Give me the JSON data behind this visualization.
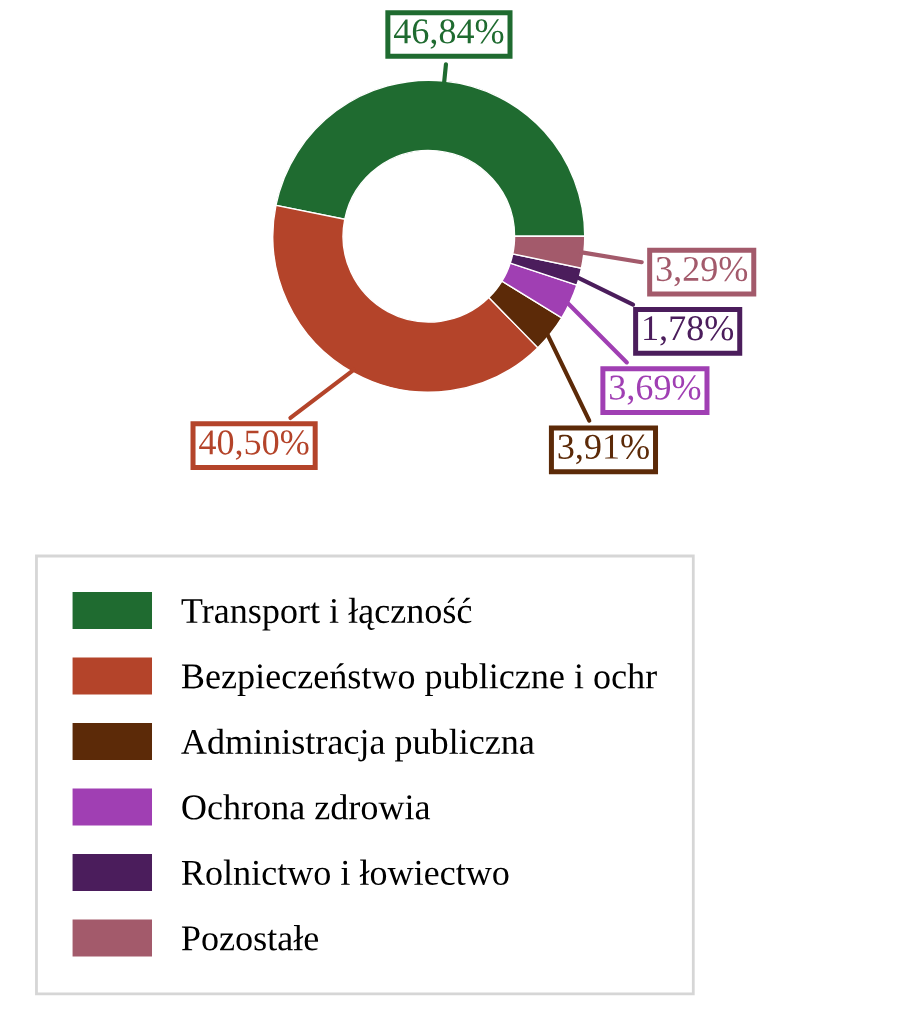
{
  "chart_data": {
    "type": "donut",
    "categories": [
      "Transport i łączność",
      "Bezpieczeństwo publiczne i ochr",
      "Administracja publiczna",
      "Ochrona zdrowia",
      "Rolnictwo i łowiectwo",
      "Pozostałe"
    ],
    "values": [
      46.84,
      40.5,
      3.91,
      3.69,
      1.78,
      3.29
    ],
    "value_labels": [
      "46,84%",
      "40,50%",
      "3,91%",
      "3,69%",
      "1,78%",
      "3,29%"
    ],
    "colors": [
      "#1f6b30",
      "#b4442a",
      "#5c2a08",
      "#a03fb3",
      "#4b1d5c",
      "#a35a6b"
    ],
    "legend": "bottom"
  }
}
